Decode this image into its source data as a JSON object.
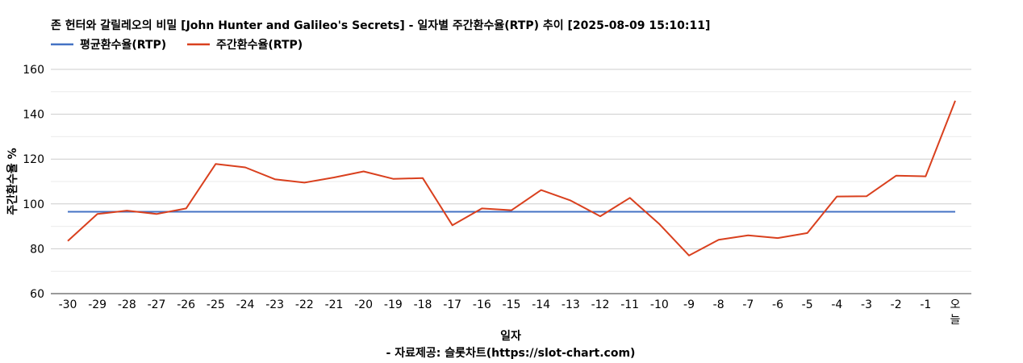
{
  "chart_data": {
    "type": "line",
    "title": "존 헌터와 갈릴레오의 비밀 [John Hunter and Galileo's Secrets] - 일자별 주간환수율(RTP) 추이 [2025-08-09 15:10:11]",
    "xlabel": "일자",
    "ylabel": "주간환수율 %",
    "source": "- 자료제공: 슬롯차트(https://slot-chart.com)",
    "categories": [
      "-30",
      "-29",
      "-28",
      "-27",
      "-26",
      "-25",
      "-24",
      "-23",
      "-22",
      "-21",
      "-20",
      "-19",
      "-18",
      "-17",
      "-16",
      "-15",
      "-14",
      "-13",
      "-12",
      "-11",
      "-10",
      "-9",
      "-8",
      "-7",
      "-6",
      "-5",
      "-4",
      "-3",
      "-2",
      "-1",
      "오늘"
    ],
    "ylim": [
      60,
      160
    ],
    "yticks": [
      60,
      80,
      100,
      120,
      140,
      160
    ],
    "grid": true,
    "legend_position": "top-left",
    "series": [
      {
        "name": "평균환수율(RTP)",
        "color": "#4472C4",
        "values": [
          96.5,
          96.5,
          96.5,
          96.5,
          96.5,
          96.5,
          96.5,
          96.5,
          96.5,
          96.5,
          96.5,
          96.5,
          96.5,
          96.5,
          96.5,
          96.5,
          96.5,
          96.5,
          96.5,
          96.5,
          96.5,
          96.5,
          96.5,
          96.5,
          96.5,
          96.5,
          96.5,
          96.5,
          96.5,
          96.5,
          96.5
        ]
      },
      {
        "name": "주간환수율(RTP)",
        "color": "#D9401E",
        "values": [
          83.5,
          95.5,
          97,
          95.5,
          98,
          117.8,
          116.3,
          111,
          109.5,
          111.8,
          114.5,
          111.2,
          111.5,
          90.5,
          98,
          97.2,
          106.2,
          101.5,
          94.5,
          102.7,
          91,
          77,
          84,
          86,
          84.8,
          87,
          103.3,
          103.4,
          112.6,
          112.3,
          146
        ]
      }
    ]
  }
}
